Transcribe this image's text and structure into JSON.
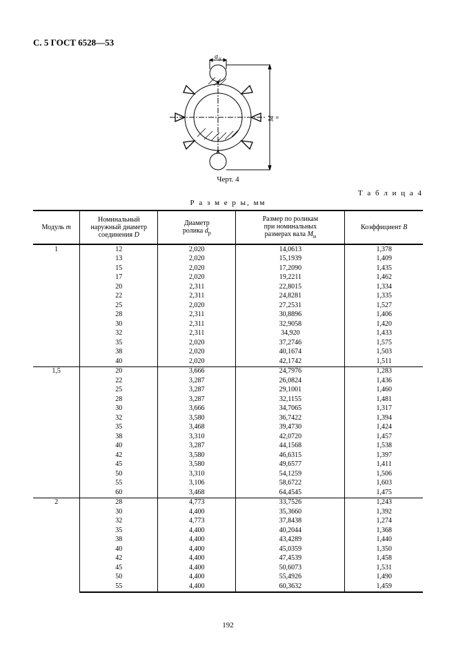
{
  "header": "С. 5 ГОСТ 6528—53",
  "figure": {
    "caption": "Черт. 4",
    "labels": {
      "dp": "dₚ",
      "mn": "Mₙ"
    }
  },
  "table_label": "Т а б л и ц а 4",
  "units": "Р а з м е р ы,  мм",
  "page_number": "192",
  "columns": {
    "module": "Модуль m",
    "outer_d": "Номинальный наружный диаметр соединения D",
    "roller_d": "Диаметр ролика dₚ",
    "size_mn": "Размер по роликам при номинальных размерах вала Mₙ",
    "coef_b": "Коэффициент B"
  },
  "style": {
    "font_family": "Times New Roman",
    "font_size_body": 10,
    "font_size_caption": 11,
    "background": "#ffffff",
    "text_color": "#000000",
    "rule_thick": 2,
    "rule_thin": 1
  },
  "groups": [
    {
      "module": "1",
      "rows": [
        {
          "D": "12",
          "dp": "2,020",
          "Mn": "14,0613",
          "B": "1,378"
        },
        {
          "D": "13",
          "dp": "2,020",
          "Mn": "15,1939",
          "B": "1,409"
        },
        {
          "D": "15",
          "dp": "2,020",
          "Mn": "17,2090",
          "B": "1,435"
        },
        {
          "D": "17",
          "dp": "2,020",
          "Mn": "19,2211",
          "B": "1,462"
        },
        {
          "D": "20",
          "dp": "2,311",
          "Mn": "22,8015",
          "B": "1,334"
        },
        {
          "D": "22",
          "dp": "2,311",
          "Mn": "24,8281",
          "B": "1,335"
        },
        {
          "D": "25",
          "dp": "2,020",
          "Mn": "27,2531",
          "B": "1,527"
        },
        {
          "D": "28",
          "dp": "2,311",
          "Mn": "30,8896",
          "B": "1,406"
        },
        {
          "D": "30",
          "dp": "2,311",
          "Mn": "32,9058",
          "B": "1,420"
        },
        {
          "D": "32",
          "dp": "2,311",
          "Mn": "34,920",
          "B": "1,433"
        },
        {
          "D": "35",
          "dp": "2,020",
          "Mn": "37,2746",
          "B": "1,575"
        },
        {
          "D": "38",
          "dp": "2,020",
          "Mn": "40,1674",
          "B": "1,503"
        },
        {
          "D": "40",
          "dp": "2,020",
          "Mn": "42,1742",
          "B": "1,511"
        }
      ]
    },
    {
      "module": "1,5",
      "rows": [
        {
          "D": "20",
          "dp": "3,666",
          "Mn": "24,7976",
          "B": "1,283"
        },
        {
          "D": "22",
          "dp": "3,287",
          "Mn": "26,0824",
          "B": "1,436"
        },
        {
          "D": "25",
          "dp": "3,287",
          "Mn": "29,1001",
          "B": "1,460"
        },
        {
          "D": "28",
          "dp": "3,287",
          "Mn": "32,1155",
          "B": "1,481"
        },
        {
          "D": "30",
          "dp": "3,666",
          "Mn": "34,7065",
          "B": "1,317"
        },
        {
          "D": "32",
          "dp": "3,580",
          "Mn": "36,7422",
          "B": "1,394"
        },
        {
          "D": "35",
          "dp": "3,468",
          "Mn": "39,4730",
          "B": "1,424"
        },
        {
          "D": "38",
          "dp": "3,310",
          "Mn": "42,0720",
          "B": "1,457"
        },
        {
          "D": "40",
          "dp": "3,287",
          "Mn": "44,1568",
          "B": "1,538"
        },
        {
          "D": "42",
          "dp": "3,580",
          "Mn": "46,6315",
          "B": "1,397"
        },
        {
          "D": "45",
          "dp": "3,580",
          "Mn": "49,6577",
          "B": "1,411"
        },
        {
          "D": "50",
          "dp": "3,310",
          "Mn": "54,1259",
          "B": "1,506"
        },
        {
          "D": "55",
          "dp": "3,106",
          "Mn": "58,6722",
          "B": "1,603"
        },
        {
          "D": "60",
          "dp": "3,468",
          "Mn": "64,4545",
          "B": "1,475"
        }
      ]
    },
    {
      "module": "2",
      "rows": [
        {
          "D": "28",
          "dp": "4,773",
          "Mn": "33,7526",
          "B": "1,243"
        },
        {
          "D": "30",
          "dp": "4,400",
          "Mn": "35,3660",
          "B": "1,392"
        },
        {
          "D": "32",
          "dp": "4,773",
          "Mn": "37,8438",
          "B": "1,274"
        },
        {
          "D": "35",
          "dp": "4,400",
          "Mn": "40,2044",
          "B": "1,368"
        },
        {
          "D": "38",
          "dp": "4,400",
          "Mn": "43,4289",
          "B": "1,440"
        },
        {
          "D": "40",
          "dp": "4,400",
          "Mn": "45,0359",
          "B": "1,350"
        },
        {
          "D": "42",
          "dp": "4,400",
          "Mn": "47,4539",
          "B": "1,458"
        },
        {
          "D": "45",
          "dp": "4,400",
          "Mn": "50,6073",
          "B": "1,531"
        },
        {
          "D": "50",
          "dp": "4,400",
          "Mn": "55,4926",
          "B": "1,490"
        },
        {
          "D": "55",
          "dp": "4,400",
          "Mn": "60,3632",
          "B": "1,459"
        }
      ]
    }
  ]
}
